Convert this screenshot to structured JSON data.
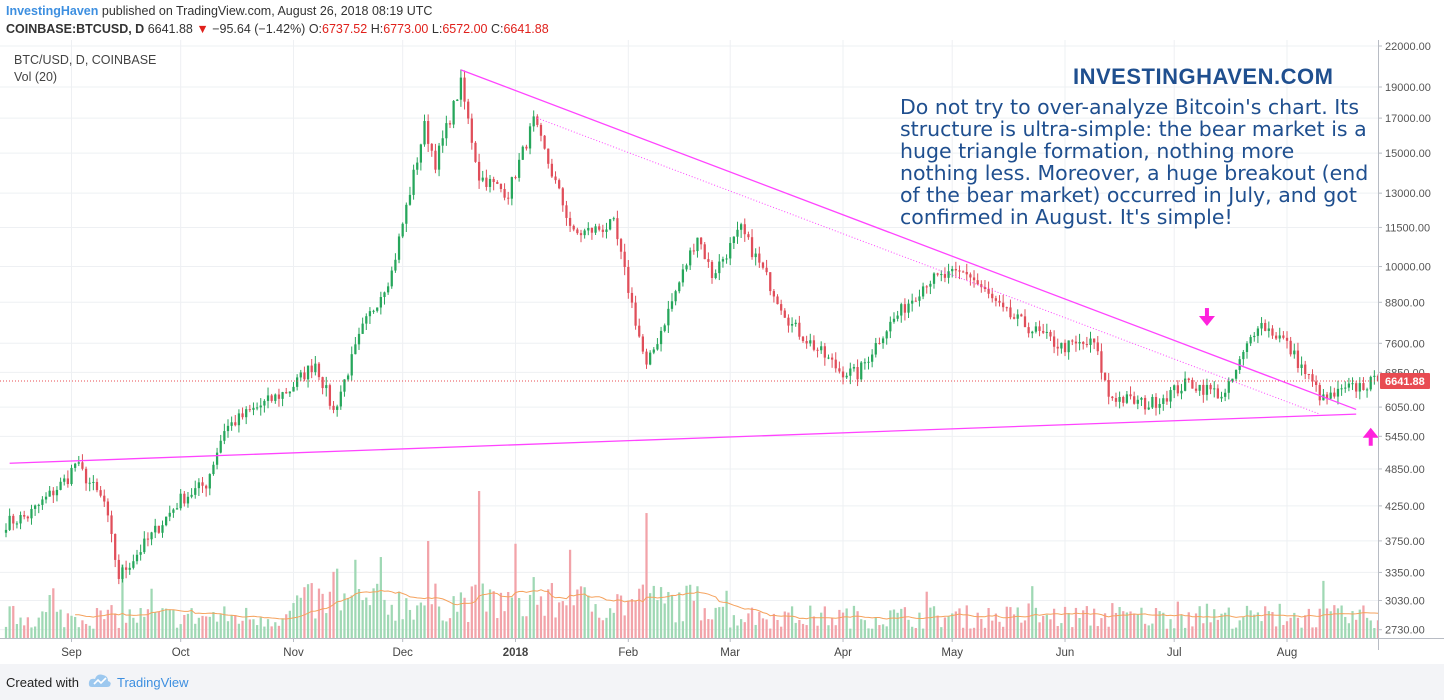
{
  "header": {
    "publisher": "InvestingHaven",
    "published_text": "published on TradingView.com, August 26, 2018 08:19 UTC",
    "symbol": "COINBASE:BTCUSD, D",
    "last": "6641.88",
    "change": "−95.64 (−1.42%)",
    "o_label": "O:",
    "o_val": "6737.52",
    "h_label": "H:",
    "h_val": "6773.00",
    "l_label": "L:",
    "l_val": "6572.00",
    "c_label": "C:",
    "c_val": "6641.88"
  },
  "chart_meta": {
    "series_label": "BTC/USD, D, COINBASE",
    "vol_label": "Vol (20)"
  },
  "watermark": "INVESTINGHAVEN.COM",
  "note": "Do not try to over-analyze Bitcoin's chart. Its structure is ultra-simple: the bear market is a huge triangle formation, nothing more nothing less. Moreover, a huge breakout (end of the bear market) occurred in July, and got confirmed in August. It's simple!",
  "footer": {
    "created": "Created with",
    "brand": "TradingView"
  },
  "colors": {
    "up": "#26a65b",
    "down": "#e04e5a",
    "up_vol": "#9fd8b4",
    "down_vol": "#f2a3a9",
    "trend": "#ff44ff",
    "ma": "#f5a25d",
    "price_label_bg": "#e84b52",
    "arrow": "#ff22dd"
  },
  "chart_data": {
    "type": "candlestick",
    "title": "BTC/USD, D, COINBASE",
    "x_start": "2017-08-14",
    "x_end": "2018-08-26",
    "x_ticks": [
      {
        "label": "Sep",
        "date": "2017-09-01"
      },
      {
        "label": "Oct",
        "date": "2017-10-01"
      },
      {
        "label": "Nov",
        "date": "2017-11-01"
      },
      {
        "label": "Dec",
        "date": "2017-12-01"
      },
      {
        "label": "2018",
        "date": "2018-01-01",
        "bold": true
      },
      {
        "label": "Feb",
        "date": "2018-02-01"
      },
      {
        "label": "Mar",
        "date": "2018-03-01"
      },
      {
        "label": "Apr",
        "date": "2018-04-01"
      },
      {
        "label": "May",
        "date": "2018-05-01"
      },
      {
        "label": "Jun",
        "date": "2018-06-01"
      },
      {
        "label": "Jul",
        "date": "2018-07-01"
      },
      {
        "label": "Aug",
        "date": "2018-08-01"
      }
    ],
    "y_ticks": [
      2730,
      3030,
      3350,
      3750,
      4250,
      4850,
      5450,
      6050,
      6850,
      7600,
      8800,
      10000,
      11500,
      13000,
      15000,
      17000,
      19000,
      22000
    ],
    "y_scale": "log",
    "ylim": [
      2650,
      22000
    ],
    "last_price": 6641.88,
    "last_price_label": "6641.88",
    "close_anchors": [
      {
        "date": "2017-08-14",
        "close": 4000
      },
      {
        "date": "2017-08-20",
        "close": 4100
      },
      {
        "date": "2017-08-31",
        "close": 4700
      },
      {
        "date": "2017-09-02",
        "close": 4950
      },
      {
        "date": "2017-09-10",
        "close": 4300
      },
      {
        "date": "2017-09-14",
        "close": 3300
      },
      {
        "date": "2017-09-21",
        "close": 3700
      },
      {
        "date": "2017-10-01",
        "close": 4350
      },
      {
        "date": "2017-10-08",
        "close": 4600
      },
      {
        "date": "2017-10-13",
        "close": 5600
      },
      {
        "date": "2017-10-20",
        "close": 5950
      },
      {
        "date": "2017-10-31",
        "close": 6450
      },
      {
        "date": "2017-11-07",
        "close": 7100
      },
      {
        "date": "2017-11-12",
        "close": 5950
      },
      {
        "date": "2017-11-20",
        "close": 8000
      },
      {
        "date": "2017-11-28",
        "close": 9800
      },
      {
        "date": "2017-12-07",
        "close": 16500
      },
      {
        "date": "2017-12-10",
        "close": 14500
      },
      {
        "date": "2017-12-17",
        "close": 19200
      },
      {
        "date": "2017-12-22",
        "close": 13800
      },
      {
        "date": "2017-12-30",
        "close": 13000
      },
      {
        "date": "2018-01-06",
        "close": 16800
      },
      {
        "date": "2018-01-17",
        "close": 11200
      },
      {
        "date": "2018-01-28",
        "close": 11600
      },
      {
        "date": "2018-02-06",
        "close": 6950
      },
      {
        "date": "2018-02-20",
        "close": 11200
      },
      {
        "date": "2018-02-24",
        "close": 9700
      },
      {
        "date": "2018-03-04",
        "close": 11400
      },
      {
        "date": "2018-03-18",
        "close": 8100
      },
      {
        "date": "2018-03-31",
        "close": 6900
      },
      {
        "date": "2018-04-05",
        "close": 6800
      },
      {
        "date": "2018-04-12",
        "close": 7900
      },
      {
        "date": "2018-04-24",
        "close": 9500
      },
      {
        "date": "2018-05-05",
        "close": 9800
      },
      {
        "date": "2018-05-15",
        "close": 8500
      },
      {
        "date": "2018-05-31",
        "close": 7500
      },
      {
        "date": "2018-06-09",
        "close": 7600
      },
      {
        "date": "2018-06-13",
        "close": 6300
      },
      {
        "date": "2018-06-24",
        "close": 6100
      },
      {
        "date": "2018-07-05",
        "close": 6600
      },
      {
        "date": "2018-07-15",
        "close": 6300
      },
      {
        "date": "2018-07-24",
        "close": 8200
      },
      {
        "date": "2018-07-31",
        "close": 7700
      },
      {
        "date": "2018-08-11",
        "close": 6200
      },
      {
        "date": "2018-08-18",
        "close": 6450
      },
      {
        "date": "2018-08-26",
        "close": 6640
      }
    ],
    "volume_spikes": [
      {
        "date": "2017-09-15",
        "height": 0.5
      },
      {
        "date": "2017-12-08",
        "height": 0.66
      },
      {
        "date": "2017-12-22",
        "height": 1.0
      },
      {
        "date": "2018-01-16",
        "height": 0.6
      },
      {
        "date": "2018-02-06",
        "height": 0.85
      },
      {
        "date": "2017-11-12",
        "height": 0.45
      }
    ],
    "trendlines": [
      {
        "name": "upper-resistance",
        "from": {
          "date": "2017-12-17",
          "price": 20200
        },
        "to": {
          "date": "2018-08-20",
          "price": 6000
        },
        "style": "solid"
      },
      {
        "name": "upper-dotted",
        "from": {
          "date": "2018-01-07",
          "price": 17000
        },
        "to": {
          "date": "2018-08-10",
          "price": 5900
        },
        "style": "dotted"
      },
      {
        "name": "lower-support",
        "from": {
          "date": "2017-08-15",
          "price": 4950
        },
        "to": {
          "date": "2018-08-20",
          "price": 5900
        },
        "style": "solid"
      }
    ],
    "arrows": [
      {
        "direction": "down",
        "date": "2018-07-10",
        "price": 8200
      },
      {
        "direction": "up",
        "date": "2018-08-24",
        "price": 5500
      }
    ]
  }
}
